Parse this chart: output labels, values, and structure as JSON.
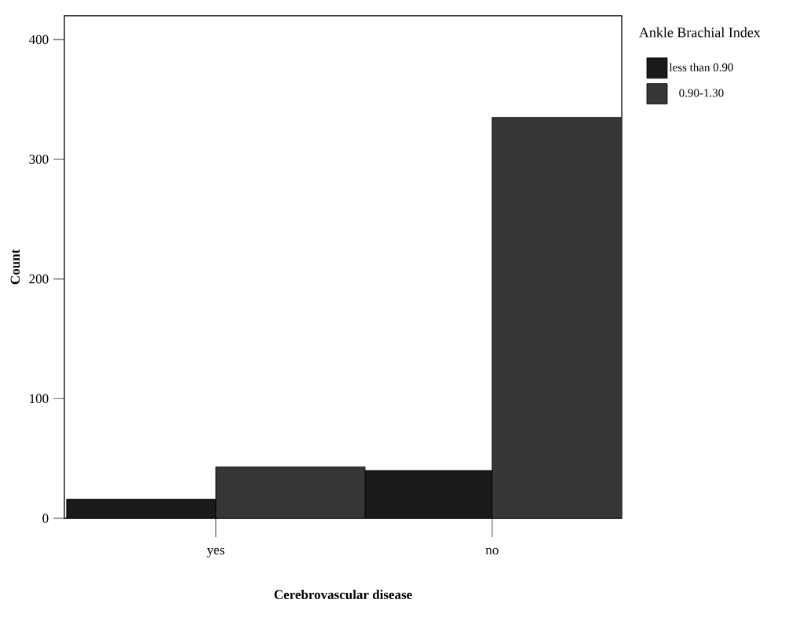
{
  "chart_data": {
    "type": "bar",
    "xlabel": "Cerebrovascular disease",
    "ylabel": "Count",
    "legend_title": "Ankle Brachial Index",
    "categories": [
      "yes",
      "no"
    ],
    "series": [
      {
        "name": "less than 0.90",
        "color": "#1a1a1a",
        "values": [
          16,
          40
        ]
      },
      {
        "name": "0.90-1.30",
        "color": "#363636",
        "values": [
          43,
          335
        ]
      }
    ],
    "ylim": [
      0,
      420
    ],
    "yticks": [
      0,
      100,
      200,
      300,
      400
    ],
    "grid": false,
    "legend": "right"
  }
}
